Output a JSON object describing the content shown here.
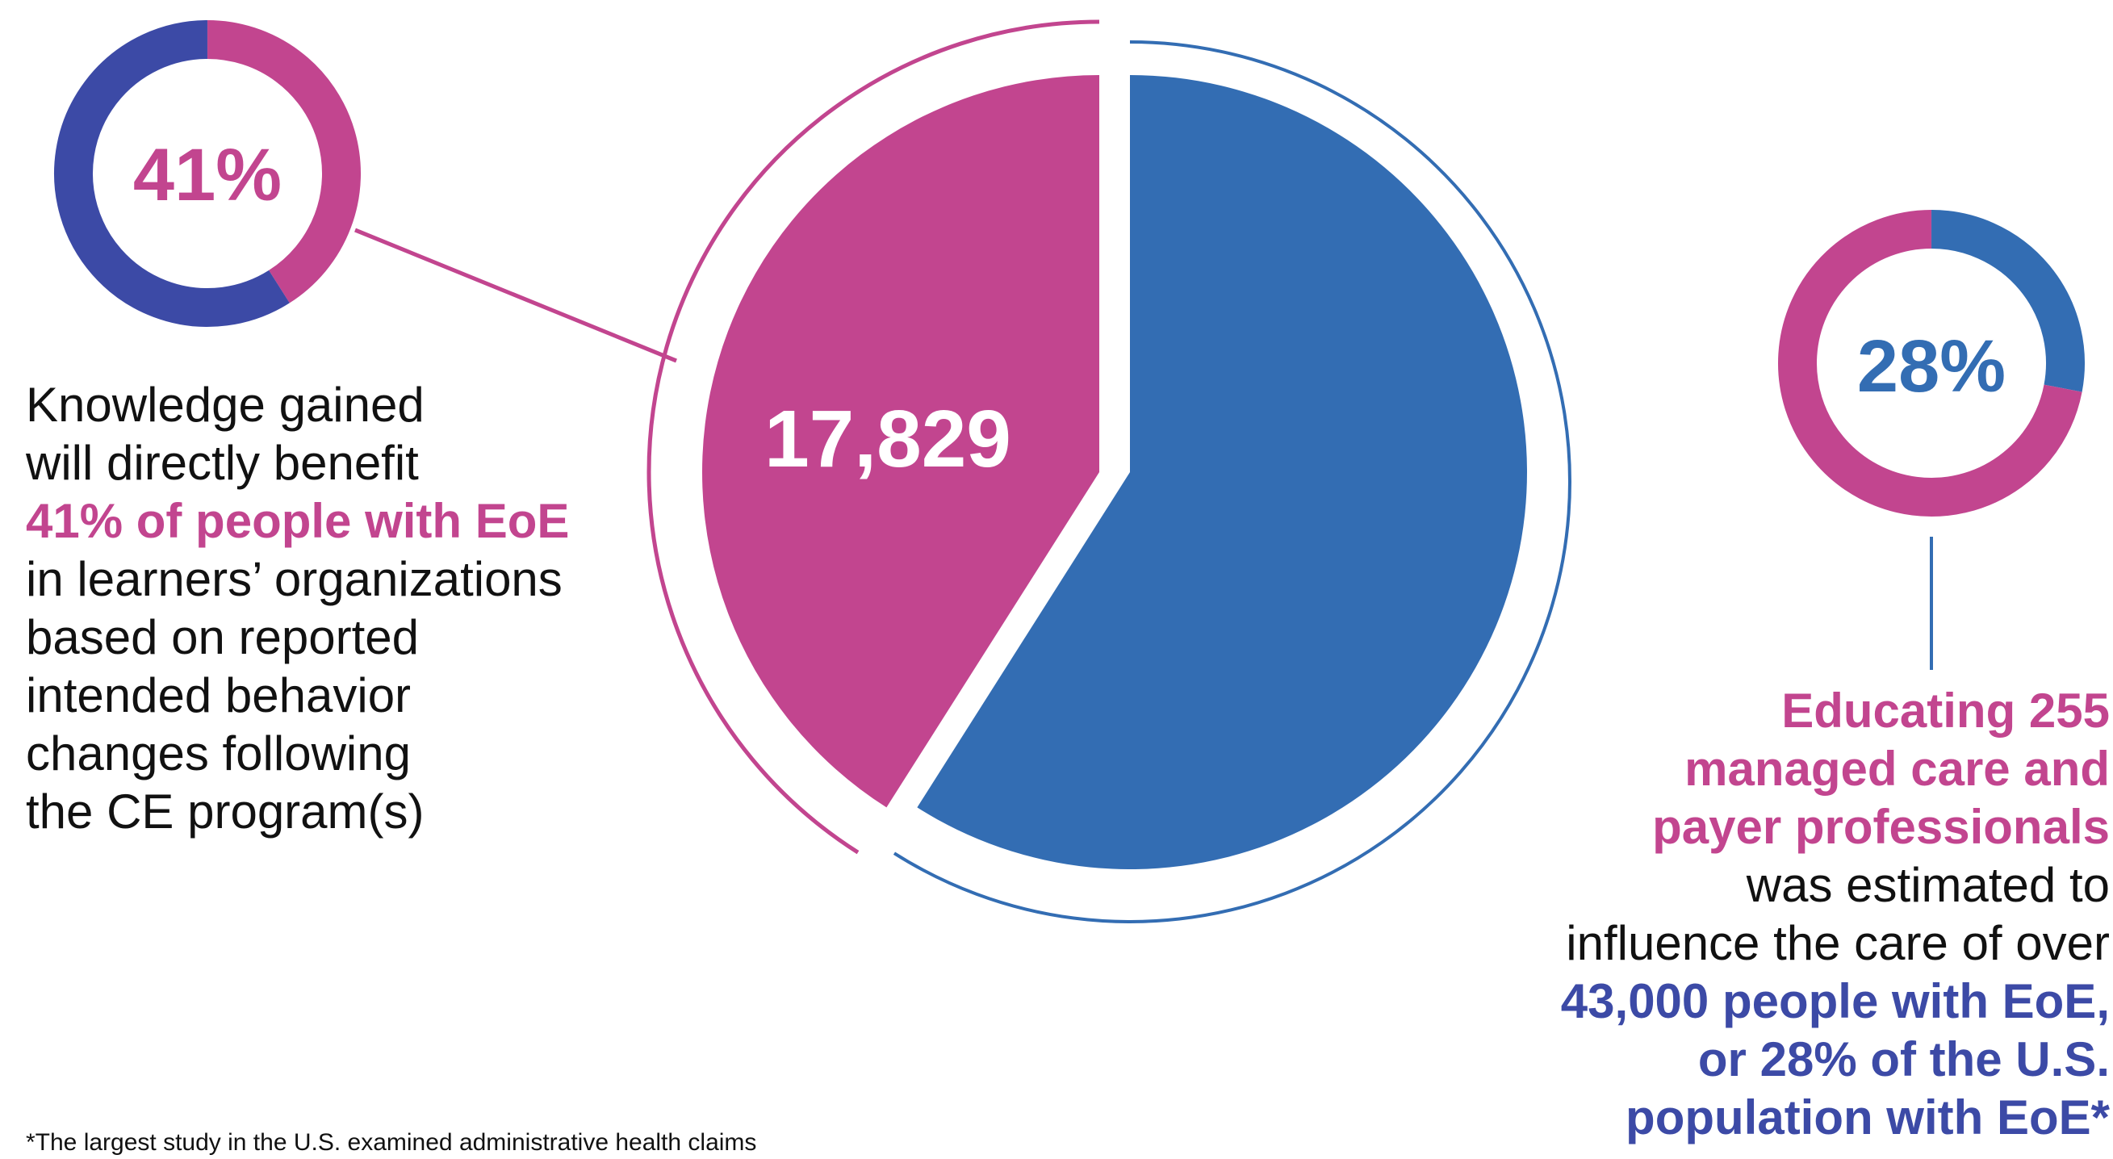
{
  "colors": {
    "pink": "#c2458f",
    "blue": "#336db3",
    "navy": "#3c4aa6",
    "text": "#111111"
  },
  "chart_data": [
    {
      "type": "pie",
      "center_label": "17,829",
      "slices": [
        {
          "value": 41,
          "color": "#c2458f"
        },
        {
          "value": 59,
          "color": "#336db3"
        }
      ]
    },
    {
      "type": "donut",
      "center_label": "41%",
      "value": 41,
      "slices": [
        {
          "value": 41,
          "color": "#c2458f"
        },
        {
          "value": 59,
          "color": "#3c4aa6"
        }
      ]
    },
    {
      "type": "donut",
      "center_label": "28%",
      "value": 28,
      "slices": [
        {
          "value": 28,
          "color": "#336db3"
        },
        {
          "value": 72,
          "color": "#c2458f"
        }
      ]
    }
  ],
  "left_callout": {
    "line1": "Knowledge gained",
    "line2": "will directly benefit",
    "highlight": "41% of people with EoE",
    "line4": "in learners’ organizations",
    "line5": "based on reported",
    "line6": "intended behavior",
    "line7": "changes following",
    "line8": "the CE program(s)"
  },
  "right_callout": {
    "highlight1_l1": "Educating 255",
    "highlight1_l2": "managed care and",
    "highlight1_l3": "payer professionals",
    "plain_l1": "was estimated to",
    "plain_l2": "influence the care of over",
    "highlight2_l1": "43,000 people with EoE,",
    "highlight2_l2": "or 28% of the U.S.",
    "highlight2_l3": "population with EoE*"
  },
  "footnote": "*The largest study in the U.S. examined administrative health claims"
}
